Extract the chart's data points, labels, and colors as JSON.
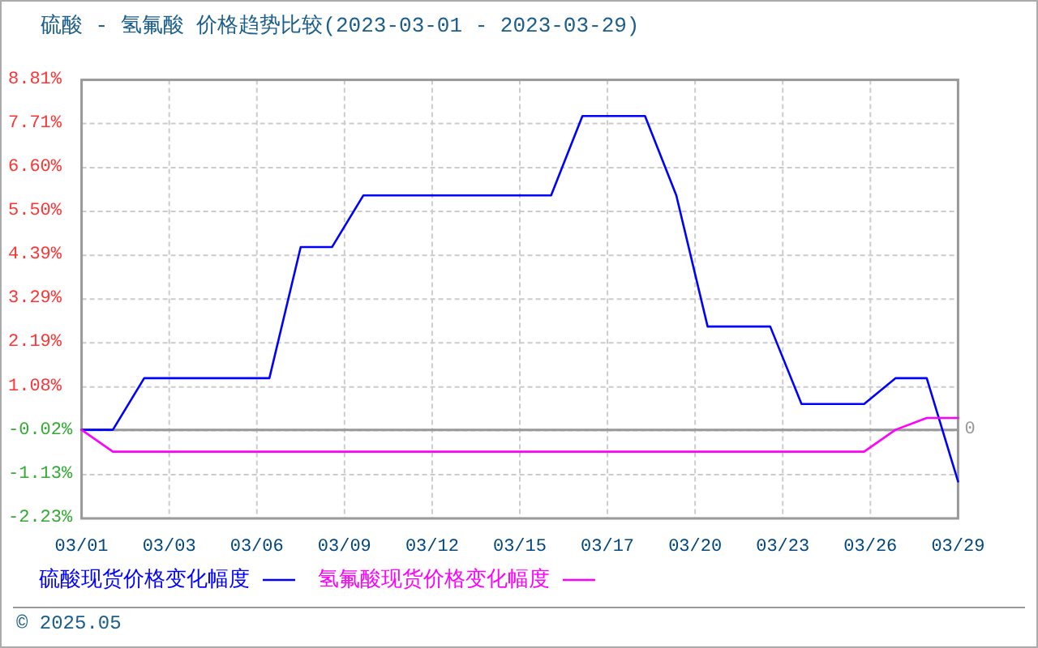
{
  "chart_data": {
    "type": "line",
    "title": "硫酸 - 氢氟酸 价格趋势比较(2023-03-01 - 2023-03-29)",
    "x": [
      "2023-03-01",
      "2023-03-02",
      "2023-03-03",
      "2023-03-04",
      "2023-03-05",
      "2023-03-06",
      "2023-03-07",
      "2023-03-08",
      "2023-03-09",
      "2023-03-10",
      "2023-03-11",
      "2023-03-12",
      "2023-03-13",
      "2023-03-14",
      "2023-03-15",
      "2023-03-16",
      "2023-03-17",
      "2023-03-18",
      "2023-03-19",
      "2023-03-20",
      "2023-03-21",
      "2023-03-22",
      "2023-03-23",
      "2023-03-24",
      "2023-03-25",
      "2023-03-26",
      "2023-03-27",
      "2023-03-28",
      "2023-03-29"
    ],
    "series": [
      {
        "name": "硫酸现货价格变化幅度",
        "color": "#0000ff",
        "values": [
          0,
          0,
          1.3,
          1.3,
          1.3,
          1.3,
          1.3,
          4.6,
          4.6,
          5.9,
          5.9,
          5.9,
          5.9,
          5.9,
          5.9,
          5.9,
          7.9,
          7.9,
          7.9,
          5.9,
          2.6,
          2.6,
          2.6,
          0.65,
          0.65,
          0.65,
          1.3,
          1.3,
          -1.3
        ]
      },
      {
        "name": "氢氟酸现货价格变化幅度",
        "color": "#ff00ff",
        "values": [
          0,
          -0.55,
          -0.55,
          -0.55,
          -0.55,
          -0.55,
          -0.55,
          -0.55,
          -0.55,
          -0.55,
          -0.55,
          -0.55,
          -0.55,
          -0.55,
          -0.55,
          -0.55,
          -0.55,
          -0.55,
          -0.55,
          -0.55,
          -0.55,
          -0.55,
          -0.55,
          -0.55,
          -0.55,
          -0.55,
          0,
          0.3,
          0.3
        ]
      }
    ],
    "xlim": [
      "2023-03-01",
      "2023-03-29"
    ],
    "xticks": [
      {
        "value": "2023-03-01",
        "label": "03/01"
      },
      {
        "value": "2023-03-03T19:12",
        "label": "03/03"
      },
      {
        "value": "2023-03-06T14:24",
        "label": "03/06"
      },
      {
        "value": "2023-03-09T09:36",
        "label": "03/09"
      },
      {
        "value": "2023-03-12T04:48",
        "label": "03/12"
      },
      {
        "value": "2023-03-15",
        "label": "03/15"
      },
      {
        "value": "2023-03-17T19:12",
        "label": "03/17"
      },
      {
        "value": "2023-03-20T14:24",
        "label": "03/20"
      },
      {
        "value": "2023-03-23T09:36",
        "label": "03/23"
      },
      {
        "value": "2023-03-26T04:48",
        "label": "03/26"
      },
      {
        "value": "2023-03-29",
        "label": "03/29"
      }
    ],
    "ylim": [
      -2.23,
      8.81
    ],
    "yticks": [
      {
        "value": -2.23,
        "label": "-2.23%"
      },
      {
        "value": -1.13,
        "label": "-1.13%"
      },
      {
        "value": -0.02,
        "label": "-0.02%"
      },
      {
        "value": 1.08,
        "label": "1.08%"
      },
      {
        "value": 2.19,
        "label": "2.19%"
      },
      {
        "value": 3.29,
        "label": "3.29%"
      },
      {
        "value": 4.39,
        "label": "4.39%"
      },
      {
        "value": 5.5,
        "label": "5.50%"
      },
      {
        "value": 6.6,
        "label": "6.60%"
      },
      {
        "value": 7.71,
        "label": "7.71%"
      },
      {
        "value": 8.81,
        "label": "8.81%"
      }
    ],
    "grid": true,
    "legend": "bottom",
    "ref_lines": [
      {
        "axis": "y",
        "value": 0,
        "label": "0",
        "color": "#999999"
      }
    ],
    "annotations": [
      "© 2025.05"
    ]
  }
}
